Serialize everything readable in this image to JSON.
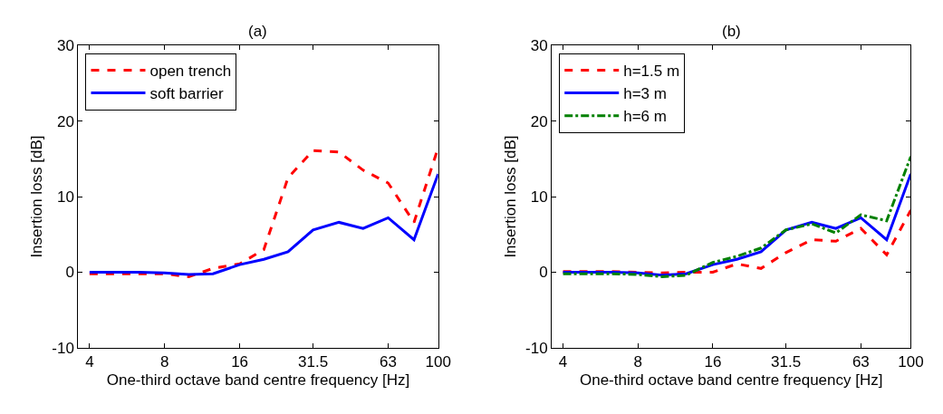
{
  "chart_data": [
    {
      "type": "line",
      "title": "(a)",
      "xlabel": "One-third octave band centre frequency [Hz]",
      "ylabel": "Insertion loss [dB]",
      "log": "x",
      "x": [
        4,
        5,
        6.3,
        8,
        10,
        12.5,
        16,
        20,
        25,
        31.5,
        40,
        50,
        63,
        80,
        100
      ],
      "xlim": [
        3.6,
        100
      ],
      "xticks": [
        4,
        8,
        16,
        31.5,
        63,
        100
      ],
      "ylim": [
        -10,
        30
      ],
      "yticks": [
        -10,
        0,
        10,
        20,
        30
      ],
      "legend": "top left",
      "marker": "none",
      "series": [
        {
          "name": "open trench",
          "color": "#ff0000",
          "line_style": "dashed",
          "values": [
            -0.2,
            -0.2,
            -0.2,
            -0.2,
            -0.6,
            0.5,
            1.1,
            3.0,
            12.5,
            16.1,
            15.9,
            13.5,
            11.8,
            6.6,
            16.5
          ]
        },
        {
          "name": "soft barrier",
          "color": "#0000ff",
          "line_style": "solid",
          "values": [
            0,
            0,
            0,
            -0.1,
            -0.3,
            -0.2,
            1.0,
            1.7,
            2.7,
            5.6,
            6.6,
            5.8,
            7.2,
            4.3,
            13.0
          ]
        }
      ]
    },
    {
      "type": "line",
      "title": "(b)",
      "xlabel": "One-third octave band centre frequency [Hz]",
      "ylabel": "Insertion loss [dB]",
      "log": "x",
      "x": [
        4,
        5,
        6.3,
        8,
        10,
        12.5,
        16,
        20,
        25,
        31.5,
        40,
        50,
        63,
        80,
        100
      ],
      "xlim": [
        3.6,
        100
      ],
      "xticks": [
        4,
        8,
        16,
        31.5,
        63,
        100
      ],
      "ylim": [
        -10,
        30
      ],
      "yticks": [
        -10,
        0,
        10,
        20,
        30
      ],
      "legend": "top left",
      "marker": "none",
      "series": [
        {
          "name": "h=1.5 m",
          "color": "#ff0000",
          "line_style": "dashed",
          "values": [
            0.1,
            0.1,
            0.1,
            0,
            -0.1,
            0,
            0,
            1.1,
            0.5,
            2.6,
            4.3,
            4.1,
            5.8,
            2.3,
            8.2
          ]
        },
        {
          "name": "h=3 m",
          "color": "#0000ff",
          "line_style": "solid",
          "values": [
            0,
            0,
            0,
            -0.1,
            -0.4,
            -0.2,
            1.0,
            1.7,
            2.7,
            5.6,
            6.6,
            5.8,
            7.2,
            4.3,
            13.0
          ]
        },
        {
          "name": "h=6 m",
          "color": "#008000",
          "line_style": "dashdot",
          "values": [
            -0.2,
            -0.2,
            -0.2,
            -0.3,
            -0.6,
            -0.4,
            1.3,
            2.1,
            3.2,
            5.6,
            6.4,
            5.2,
            7.6,
            6.8,
            15.3
          ]
        }
      ]
    }
  ]
}
